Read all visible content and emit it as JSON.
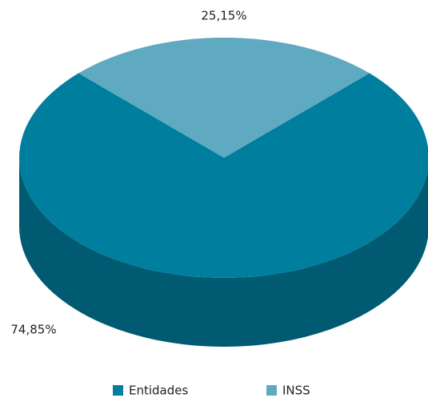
{
  "chart_data": {
    "type": "pie3d",
    "categories": [
      "Entidades",
      "INSS"
    ],
    "values": [
      74.85,
      25.15
    ],
    "value_labels": [
      "74,85%",
      "25,15%"
    ],
    "colors": [
      "#007e9e",
      "#5fa9c1"
    ],
    "legend": "bottom"
  }
}
